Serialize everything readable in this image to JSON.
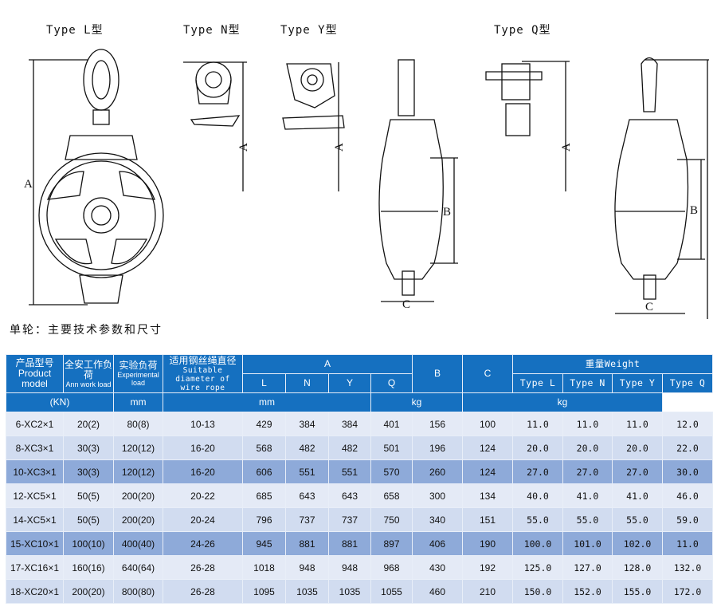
{
  "drawings": {
    "labels": [
      "Type L型",
      "Type N型",
      "Type Y型",
      "Type Q型"
    ],
    "dimensions": {
      "a": "A",
      "b": "B",
      "c": "C"
    }
  },
  "caption": "单轮：主要技术参数和尺寸",
  "table": {
    "header": {
      "model_cn": "产品型号",
      "model_en": "Product model",
      "work_load_cn": "全安工作负荷",
      "work_load_en": "Ann work load",
      "exp_load_cn": "实验负荷",
      "exp_load_en": "Experimental load",
      "rope_cn": "适用钢丝绳直径",
      "rope_en": "Suitable diameter of wire rope",
      "a": "A",
      "a_cols": [
        "L",
        "N",
        "Y",
        "Q"
      ],
      "b": "B",
      "c": "C",
      "weight": "重量Weight",
      "weight_cols": [
        "Type L",
        "Type N",
        "Type Y",
        "Type Q"
      ],
      "unit_load": "(KN)",
      "unit_rope": "mm",
      "unit_a": "mm",
      "unit_bc": "kg",
      "unit_weight": "kg"
    },
    "row_colors": {
      "light": "#e4eaf6",
      "mid": "#d1dcf0",
      "dark": "#8eaad9",
      "header": "#1570c0"
    },
    "rows": [
      {
        "shade": "light",
        "cells": [
          "6-XC2×1",
          "20(2)",
          "80(8)",
          "10-13",
          "429",
          "384",
          "384",
          "401",
          "156",
          "100",
          "11.0",
          "11.0",
          "11.0",
          "12.0"
        ]
      },
      {
        "shade": "mid",
        "cells": [
          "8-XC3×1",
          "30(3)",
          "120(12)",
          "16-20",
          "568",
          "482",
          "482",
          "501",
          "196",
          "124",
          "20.0",
          "20.0",
          "20.0",
          "22.0"
        ]
      },
      {
        "shade": "dark",
        "cells": [
          "10-XC3×1",
          "30(3)",
          "120(12)",
          "16-20",
          "606",
          "551",
          "551",
          "570",
          "260",
          "124",
          "27.0",
          "27.0",
          "27.0",
          "30.0"
        ]
      },
      {
        "shade": "light",
        "cells": [
          "12-XC5×1",
          "50(5)",
          "200(20)",
          "20-22",
          "685",
          "643",
          "643",
          "658",
          "300",
          "134",
          "40.0",
          "41.0",
          "41.0",
          "46.0"
        ]
      },
      {
        "shade": "mid",
        "cells": [
          "14-XC5×1",
          "50(5)",
          "200(20)",
          "20-24",
          "796",
          "737",
          "737",
          "750",
          "340",
          "151",
          "55.0",
          "55.0",
          "55.0",
          "59.0"
        ]
      },
      {
        "shade": "dark",
        "cells": [
          "15-XC10×1",
          "100(10)",
          "400(40)",
          "24-26",
          "945",
          "881",
          "881",
          "897",
          "406",
          "190",
          "100.0",
          "101.0",
          "102.0",
          "11.0"
        ]
      },
      {
        "shade": "light",
        "cells": [
          "17-XC16×1",
          "160(16)",
          "640(64)",
          "26-28",
          "1018",
          "948",
          "948",
          "968",
          "430",
          "192",
          "125.0",
          "127.0",
          "128.0",
          "132.0"
        ]
      },
      {
        "shade": "mid",
        "cells": [
          "18-XC20×1",
          "200(20)",
          "800(80)",
          "26-28",
          "1095",
          "1035",
          "1035",
          "1055",
          "460",
          "210",
          "150.0",
          "152.0",
          "155.0",
          "172.0"
        ]
      }
    ]
  }
}
